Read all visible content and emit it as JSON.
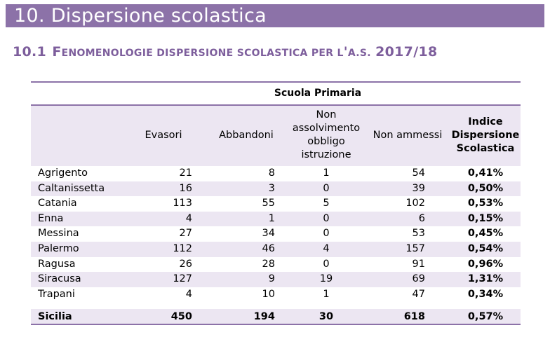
{
  "heading": "10.  Dispersione scolastica",
  "subheading": {
    "number": "10.1",
    "f_big": "F",
    "part1": "ENOMENOLOGIE DISPERSIONE SCOLASTICA PER L",
    "apos": "'",
    "part2": "A.S.",
    "year": "2017/18"
  },
  "table": {
    "title": "Scuola Primaria",
    "columns": [
      "",
      "Evasori",
      "Abbandoni",
      "Non assolvimento obbligo istruzione",
      "Non ammessi",
      "Indice Dispersione Scolastica"
    ],
    "column_lines": {
      "col3": [
        "Non",
        "assolvimento",
        "obbligo",
        "istruzione"
      ],
      "col5": [
        "Indice",
        "Dispersione",
        "Scolastica"
      ]
    },
    "rows": [
      {
        "name": "Agrigento",
        "evasori": "21",
        "abbandoni": "8",
        "non_assolvimento": "1",
        "non_ammessi": "54",
        "indice": "0,41%"
      },
      {
        "name": "Caltanissetta",
        "evasori": "16",
        "abbandoni": "3",
        "non_assolvimento": "0",
        "non_ammessi": "39",
        "indice": "0,50%"
      },
      {
        "name": "Catania",
        "evasori": "113",
        "abbandoni": "55",
        "non_assolvimento": "5",
        "non_ammessi": "102",
        "indice": "0,53%"
      },
      {
        "name": "Enna",
        "evasori": "4",
        "abbandoni": "1",
        "non_assolvimento": "0",
        "non_ammessi": "6",
        "indice": "0,15%"
      },
      {
        "name": "Messina",
        "evasori": "27",
        "abbandoni": "34",
        "non_assolvimento": "0",
        "non_ammessi": "53",
        "indice": "0,45%"
      },
      {
        "name": "Palermo",
        "evasori": "112",
        "abbandoni": "46",
        "non_assolvimento": "4",
        "non_ammessi": "157",
        "indice": "0,54%"
      },
      {
        "name": "Ragusa",
        "evasori": "26",
        "abbandoni": "28",
        "non_assolvimento": "0",
        "non_ammessi": "91",
        "indice": "0,96%"
      },
      {
        "name": "Siracusa",
        "evasori": "127",
        "abbandoni": "9",
        "non_assolvimento": "19",
        "non_ammessi": "69",
        "indice": "1,31%"
      },
      {
        "name": "Trapani",
        "evasori": "4",
        "abbandoni": "10",
        "non_assolvimento": "1",
        "non_ammessi": "47",
        "indice": "0,34%"
      }
    ],
    "total": {
      "name": "Sicilia",
      "evasori": "450",
      "abbandoni": "194",
      "non_assolvimento": "30",
      "non_ammessi": "618",
      "indice": "0,57%"
    }
  },
  "colors": {
    "accent": "#8c72a8",
    "subheading": "#7d5e9c",
    "row_band": "#ece6f2"
  }
}
